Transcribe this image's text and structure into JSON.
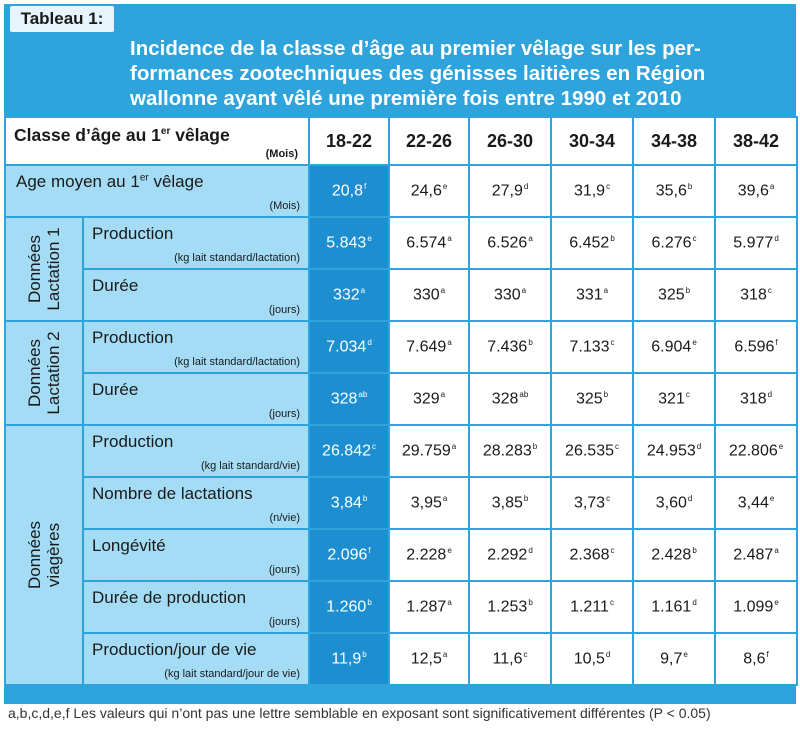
{
  "table_label": "Tableau 1:",
  "title_lines": [
    "Incidence de la classe d’âge au premier vêlage sur les per-",
    "formances zootechniques des génisses laitières en Région",
    "wallonne ayant vêlé une première fois entre 1990 et 2010"
  ],
  "header": {
    "col_label_pre": "Classe d’âge au 1",
    "col_label_sup": "er",
    "col_label_post": " vêlage",
    "col_unit": "(Mois)",
    "classes": [
      "18-22",
      "22-26",
      "26-30",
      "30-34",
      "34-38",
      "38-42"
    ]
  },
  "groups": {
    "lact1": [
      "Données",
      "Lactation 1"
    ],
    "lact2": [
      "Données",
      "Lactation 2"
    ],
    "vie": [
      "Données",
      "viagères"
    ]
  },
  "rows": {
    "age": {
      "label_pre": "Age moyen au 1",
      "label_sup": "er",
      "label_post": " vêlage",
      "unit": "(Mois)",
      "v": [
        "20,8",
        "24,6",
        "27,9",
        "31,9",
        "35,6",
        "39,6"
      ],
      "s": [
        "f",
        "e",
        "d",
        "c",
        "b",
        "a"
      ]
    },
    "l1prod": {
      "label": "Production",
      "unit": "(kg lait standard/lactation)",
      "v": [
        "5.843",
        "6.574",
        "6.526",
        "6.452",
        "6.276",
        "5.977"
      ],
      "s": [
        "e",
        "a",
        "a",
        "b",
        "c",
        "d"
      ]
    },
    "l1dur": {
      "label": "Durée",
      "unit": "(jours)",
      "v": [
        "332",
        "330",
        "330",
        "331",
        "325",
        "318"
      ],
      "s": [
        "a",
        "a",
        "a",
        "a",
        "b",
        "c"
      ]
    },
    "l2prod": {
      "label": "Production",
      "unit": "(kg lait standard/lactation)",
      "v": [
        "7.034",
        "7.649",
        "7.436",
        "7.133",
        "6.904",
        "6.596"
      ],
      "s": [
        "d",
        "a",
        "b",
        "c",
        "e",
        "f"
      ]
    },
    "l2dur": {
      "label": "Durée",
      "unit": "(jours)",
      "v": [
        "328",
        "329",
        "328",
        "325",
        "321",
        "318"
      ],
      "s": [
        "ab",
        "a",
        "ab",
        "b",
        "c",
        "d"
      ]
    },
    "vprod": {
      "label": "Production",
      "unit": "(kg lait standard/vie)",
      "v": [
        "26.842",
        "29.759",
        "28.283",
        "26.535",
        "24.953",
        "22.806"
      ],
      "s": [
        "c",
        "a",
        "b",
        "c",
        "d",
        "e"
      ]
    },
    "vnb": {
      "label": "Nombre de lactations",
      "unit": "(n/vie)",
      "v": [
        "3,84",
        "3,95",
        "3,85",
        "3,73",
        "3,60",
        "3,44"
      ],
      "s": [
        "b",
        "a",
        "b",
        "c",
        "d",
        "e"
      ]
    },
    "vlong": {
      "label": "Longévité",
      "unit": "(jours)",
      "v": [
        "2.096",
        "2.228",
        "2.292",
        "2.368",
        "2.428",
        "2.487"
      ],
      "s": [
        "f",
        "e",
        "d",
        "c",
        "b",
        "a"
      ]
    },
    "vdur": {
      "label": "Durée de production",
      "unit": "(jours)",
      "v": [
        "1.260",
        "1.287",
        "1.253",
        "1.211",
        "1.161",
        "1.099"
      ],
      "s": [
        "b",
        "a",
        "b",
        "c",
        "d",
        "e"
      ]
    },
    "vjour": {
      "label": "Production/jour de vie",
      "unit": "(kg lait standard/jour de vie)",
      "v": [
        "11,9",
        "12,5",
        "11,6",
        "10,5",
        "9,7",
        "8,6"
      ],
      "s": [
        "b",
        "a",
        "c",
        "d",
        "e",
        "f"
      ]
    }
  },
  "footnote": "a,b,c,d,e,f Les valeurs qui n’ont pas une lettre semblable en exposant sont significativement différentes (P < 0.05)",
  "colors": {
    "frame_blue": "#2ea3dc",
    "label_light_blue": "#a4dcf6",
    "highlight_blue": "#1d8fd1"
  }
}
